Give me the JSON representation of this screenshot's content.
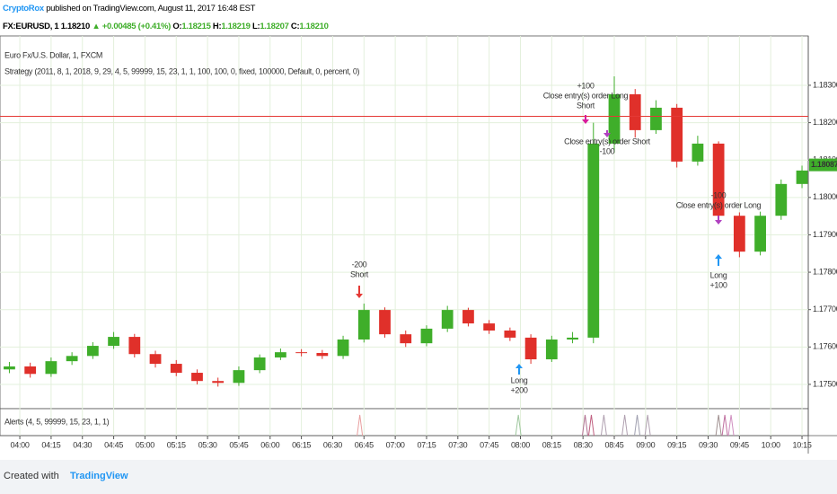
{
  "header": {
    "author": "CryptoRox",
    "published": "published on TradingView.com, August 11, 2017 16:48 EST"
  },
  "quote": {
    "symbol": "FX:EURUSD, 1",
    "last": "1.18210",
    "change": "▲ +0.00485 (+0.41%)",
    "o_label": "O:",
    "o": "1.18215",
    "h_label": "H:",
    "h": "1.18219",
    "l_label": "L:",
    "l": "1.18207",
    "c_label": "C:",
    "c": "1.18210"
  },
  "legend": {
    "title": "Euro Fx/U.S. Dollar, 1, FXCM",
    "strategy": "Strategy (2011, 8, 1, 2018, 9, 29, 4, 5, 99999, 15, 23, 1, 1, 100, 100, 0, fixed, 100000, Default, 0, percent, 0)"
  },
  "chart_data": {
    "type": "candlestick",
    "x": [
      235,
      245,
      255,
      265,
      275,
      285,
      295,
      305,
      315,
      325,
      335,
      345,
      355,
      365,
      375,
      385,
      395,
      405,
      415,
      425,
      435,
      445,
      455,
      465,
      475,
      485,
      495,
      505,
      515,
      525,
      535,
      545,
      555,
      565,
      575,
      585,
      595,
      605,
      615
    ],
    "open": [
      1.1754,
      1.17548,
      1.17528,
      1.17562,
      1.17576,
      1.17603,
      1.17627,
      1.17581,
      1.17555,
      1.17531,
      1.17509,
      1.17504,
      1.17538,
      1.17572,
      1.17586,
      1.17584,
      1.17576,
      1.1762,
      1.17699,
      1.17634,
      1.1761,
      1.17649,
      1.17699,
      1.17663,
      1.17644,
      1.17625,
      1.17567,
      1.1762,
      1.17625,
      1.18144,
      1.18276,
      1.1818,
      1.1824,
      1.18096,
      1.18144,
      1.17951,
      1.17855,
      1.17951,
      1.18036
    ],
    "high": [
      1.1756,
      1.17558,
      1.17572,
      1.17586,
      1.17613,
      1.1764,
      1.17635,
      1.1759,
      1.17565,
      1.1754,
      1.17518,
      1.17548,
      1.1758,
      1.17596,
      1.17594,
      1.17592,
      1.1763,
      1.17716,
      1.17706,
      1.17644,
      1.17658,
      1.1771,
      1.17705,
      1.17672,
      1.17652,
      1.17634,
      1.1763,
      1.1764,
      1.182,
      1.18324,
      1.1829,
      1.1826,
      1.1825,
      1.18165,
      1.1815,
      1.1796,
      1.17962,
      1.18048,
      1.18085
    ],
    "low": [
      1.1753,
      1.17518,
      1.1752,
      1.17552,
      1.17568,
      1.17595,
      1.17572,
      1.17545,
      1.17522,
      1.175,
      1.17494,
      1.17496,
      1.1753,
      1.17565,
      1.17575,
      1.17568,
      1.17568,
      1.17612,
      1.17625,
      1.176,
      1.17602,
      1.1764,
      1.17655,
      1.17635,
      1.17616,
      1.17555,
      1.1756,
      1.1761,
      1.1761,
      1.1812,
      1.1816,
      1.1817,
      1.1808,
      1.18085,
      1.1794,
      1.1784,
      1.17845,
      1.1794,
      1.18025
    ],
    "close": [
      1.17548,
      1.17528,
      1.17562,
      1.17576,
      1.17603,
      1.17627,
      1.17581,
      1.17555,
      1.17531,
      1.17509,
      1.17504,
      1.17538,
      1.17572,
      1.17586,
      1.17584,
      1.17576,
      1.1762,
      1.17699,
      1.17634,
      1.1761,
      1.17649,
      1.17699,
      1.17663,
      1.17644,
      1.17625,
      1.17567,
      1.1762,
      1.17625,
      1.18144,
      1.18276,
      1.1818,
      1.1824,
      1.18096,
      1.18144,
      1.17951,
      1.17855,
      1.17951,
      1.18036,
      1.18072
    ],
    "up_color": "#3fae2a",
    "down_color": "#e0302a",
    "xlim": [
      230.5,
      618
    ],
    "xticks": [
      {
        "value": 240,
        "label": "04:00"
      },
      {
        "value": 255,
        "label": "04:15"
      },
      {
        "value": 270,
        "label": "04:30"
      },
      {
        "value": 285,
        "label": "04:45"
      },
      {
        "value": 300,
        "label": "05:00"
      },
      {
        "value": 315,
        "label": "05:15"
      },
      {
        "value": 330,
        "label": "05:30"
      },
      {
        "value": 345,
        "label": "05:45"
      },
      {
        "value": 360,
        "label": "06:00"
      },
      {
        "value": 375,
        "label": "06:15"
      },
      {
        "value": 390,
        "label": "06:30"
      },
      {
        "value": 405,
        "label": "06:45"
      },
      {
        "value": 420,
        "label": "07:00"
      },
      {
        "value": 435,
        "label": "07:15"
      },
      {
        "value": 450,
        "label": "07:30"
      },
      {
        "value": 465,
        "label": "07:45"
      },
      {
        "value": 480,
        "label": "08:00"
      },
      {
        "value": 495,
        "label": "08:15"
      },
      {
        "value": 510,
        "label": "08:30"
      },
      {
        "value": 525,
        "label": "08:45"
      },
      {
        "value": 540,
        "label": "09:00"
      },
      {
        "value": 555,
        "label": "09:15"
      },
      {
        "value": 570,
        "label": "09:30"
      },
      {
        "value": 585,
        "label": "09:45"
      },
      {
        "value": 600,
        "label": "10:00"
      },
      {
        "value": 615,
        "label": "10:15"
      }
    ],
    "ylim": [
      1.17435,
      1.18432
    ],
    "yticks": [
      {
        "value": 1.175,
        "label": "1.17500"
      },
      {
        "value": 1.176,
        "label": "1.17600"
      },
      {
        "value": 1.177,
        "label": "1.17700"
      },
      {
        "value": 1.178,
        "label": "1.17800"
      },
      {
        "value": 1.179,
        "label": "1.17900"
      },
      {
        "value": 1.18,
        "label": "1.18000"
      },
      {
        "value": 1.181,
        "label": "1.18100"
      },
      {
        "value": 1.182,
        "label": "1.18200"
      },
      {
        "value": 1.183,
        "label": "1.18300"
      }
    ],
    "grid": true,
    "hline": 1.18217,
    "hline_color": "#e53935",
    "last_price": 1.18087,
    "annotations": [
      {
        "lines": [
          "-200",
          "Short"
        ],
        "color": "#e53935"
      },
      {
        "lines": [
          "Long",
          "+200"
        ],
        "color": "#2196f3"
      },
      {
        "lines": [
          "+100",
          "Close entry(s) order Long",
          "Short"
        ],
        "color": "#d81b9c"
      },
      {
        "lines": [
          "Close entry(s) order Short",
          "-100"
        ],
        "color": "#b040c0"
      },
      {
        "lines": [
          "-100",
          "Close entry(s) order Long"
        ],
        "color": "#b040c0"
      },
      {
        "lines": [
          "Long",
          "+100"
        ],
        "color": "#2196f3"
      }
    ],
    "alerts": {
      "title": "Alerts (4, 5, 99999, 15, 23, 1, 1)",
      "x": [
        403,
        479,
        511,
        514,
        520,
        530,
        536,
        541,
        575,
        578,
        581
      ],
      "values": [
        1,
        1,
        1,
        1,
        1,
        1,
        1,
        1,
        1,
        1,
        1
      ],
      "colors": [
        "#e8a0a0",
        "#a0c8a0",
        "#b07090",
        "#c06080",
        "#b0a0b0",
        "#b0a0b0",
        "#a0a0b0",
        "#b0a0b0",
        "#a09090",
        "#c070a0",
        "#d090c0"
      ],
      "ylim": [
        0,
        1.3
      ]
    }
  },
  "footer": {
    "created": "Created with",
    "brand": "TradingView"
  }
}
